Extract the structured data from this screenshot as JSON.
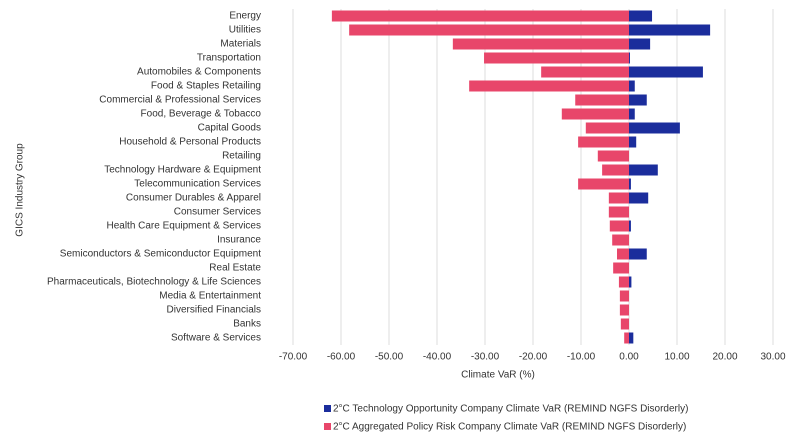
{
  "chart_data": {
    "type": "barh",
    "x_label": "Climate VaR (%)",
    "y_label": "GICS Industry Group",
    "categories": [
      "Energy",
      "Utilities",
      "Materials",
      "Transportation",
      "Automobiles & Components",
      "Food & Staples Retailing",
      "Commercial & Professional Services",
      "Food, Beverage & Tobacco",
      "Capital Goods",
      "Household & Personal Products",
      "Retailing",
      "Technology Hardware & Equipment",
      "Telecommunication Services",
      "Consumer Durables & Apparel",
      "Consumer Services",
      "Health Care Equipment & Services",
      "Insurance",
      "Semiconductors & Semiconductor Equipment",
      "Real Estate",
      "Pharmaceuticals, Biotechnology & Life Sciences",
      "Media & Entertainment",
      "Diversified Financials",
      "Banks",
      "Software & Services"
    ],
    "series": [
      {
        "name": "2°C Technology Opportunity Company Climate VaR (REMIND NGFS Disorderly)",
        "color": "#1b2d9c",
        "values": [
          4.8,
          16.9,
          4.4,
          0.2,
          15.4,
          1.2,
          3.7,
          1.2,
          10.6,
          1.5,
          0,
          6.0,
          0.4,
          4.0,
          0,
          0.4,
          0,
          3.7,
          0,
          0.5,
          0,
          0,
          0,
          0.9
        ]
      },
      {
        "name": "2°C Aggregated Policy Risk Company Climate VaR (REMIND NGFS Disorderly)",
        "color": "#e8466a",
        "values": [
          -61.9,
          -58.3,
          -36.7,
          -30.2,
          -18.3,
          -33.3,
          -11.2,
          -14.0,
          -9.0,
          -10.6,
          -6.5,
          -5.6,
          -10.6,
          -4.2,
          -4.2,
          -4.0,
          -3.5,
          -2.5,
          -3.3,
          -2.1,
          -1.9,
          -1.9,
          -1.7,
          -1.0
        ]
      }
    ],
    "xlim": [
      -70,
      30
    ],
    "xticks": [
      {
        "value": -70,
        "label": "-70.00"
      },
      {
        "value": -60,
        "label": "-60.00"
      },
      {
        "value": -50,
        "label": "-50.00"
      },
      {
        "value": -40,
        "label": "-40.00"
      },
      {
        "value": -30,
        "label": "-30.00"
      },
      {
        "value": -20,
        "label": "-20.00"
      },
      {
        "value": -10,
        "label": "-10.00"
      },
      {
        "value": 0,
        "label": "0.00"
      },
      {
        "value": 10,
        "label": "10.00"
      },
      {
        "value": 20,
        "label": "20.00"
      },
      {
        "value": 30,
        "label": "30.00"
      }
    ],
    "grid": true
  }
}
